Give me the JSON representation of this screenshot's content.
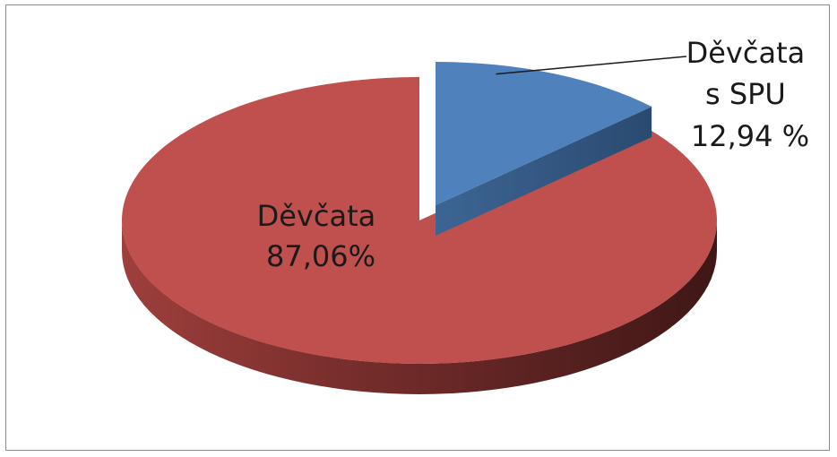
{
  "chart_data": {
    "type": "pie",
    "style": "3d-exploded",
    "slices": [
      {
        "label_lines": [
          "Děvčata",
          "s SPU",
          "12,94 %"
        ],
        "value": 12.94,
        "color": "#4f81bd",
        "exploded": true,
        "label_placement": "outside-with-leader"
      },
      {
        "label_lines": [
          "Děvčata",
          "87,06%"
        ],
        "value": 87.06,
        "color": "#c0504d",
        "exploded": false,
        "label_placement": "inside"
      }
    ],
    "title": "",
    "legend": "none"
  }
}
